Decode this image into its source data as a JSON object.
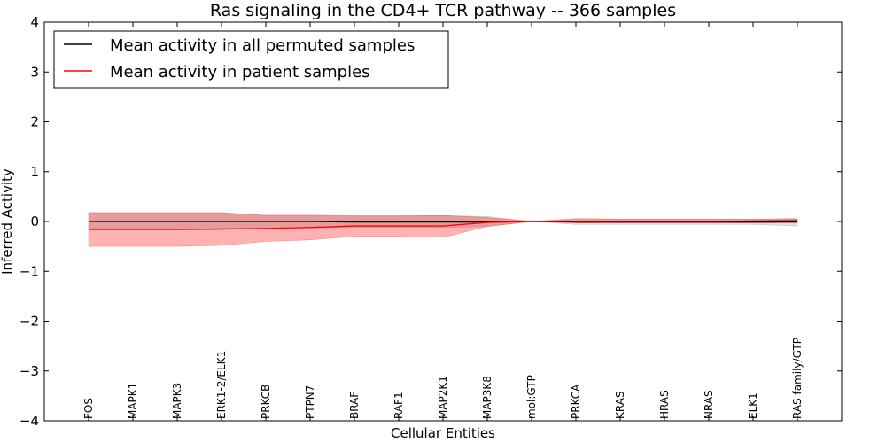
{
  "chart_data": {
    "type": "line",
    "title": "Ras signaling in the CD4+ TCR pathway -- 366 samples",
    "xlabel": "Cellular Entities",
    "ylabel": "Inferred Activity",
    "ylim": [
      -4,
      4
    ],
    "yticks": [
      -4,
      -3,
      -2,
      -1,
      0,
      1,
      2,
      3,
      4
    ],
    "categories": [
      "FOS",
      "MAPK1",
      "MAPK3",
      "ERK1-2/ELK1",
      "PRKCB",
      "PTPN7",
      "BRAF",
      "RAF1",
      "MAP2K1",
      "MAP3K8",
      "mol:GTP",
      "PRKCA",
      "KRAS",
      "HRAS",
      "NRAS",
      "ELK1",
      "RAS family/GTP"
    ],
    "legend_position": "upper-left",
    "series": [
      {
        "name": "Mean activity in all permuted samples",
        "color": "#000000",
        "band_color": "#808080",
        "values": [
          0.0,
          0.0,
          0.0,
          0.0,
          0.0,
          0.0,
          -0.01,
          -0.01,
          -0.01,
          -0.01,
          0.0,
          -0.01,
          -0.01,
          -0.01,
          -0.01,
          -0.01,
          -0.01
        ],
        "upper": [
          0.17,
          0.17,
          0.17,
          0.17,
          0.13,
          0.13,
          0.12,
          0.12,
          0.12,
          0.1,
          0.0,
          0.04,
          0.04,
          0.04,
          0.04,
          0.04,
          0.07
        ],
        "lower": [
          -0.17,
          -0.17,
          -0.17,
          -0.17,
          -0.13,
          -0.13,
          -0.12,
          -0.12,
          -0.12,
          -0.1,
          0.0,
          -0.06,
          -0.06,
          -0.06,
          -0.06,
          -0.06,
          -0.09
        ]
      },
      {
        "name": "Mean activity in patient samples",
        "color": "#ff0000",
        "band_color": "#ff0000",
        "values": [
          -0.16,
          -0.16,
          -0.16,
          -0.15,
          -0.14,
          -0.12,
          -0.09,
          -0.09,
          -0.09,
          -0.02,
          0.0,
          0.0,
          0.0,
          0.0,
          0.0,
          0.01,
          0.02
        ],
        "upper": [
          0.18,
          0.18,
          0.18,
          0.18,
          0.12,
          0.12,
          0.11,
          0.11,
          0.12,
          0.08,
          0.0,
          0.06,
          0.05,
          0.05,
          0.05,
          0.05,
          0.05
        ],
        "lower": [
          -0.5,
          -0.5,
          -0.5,
          -0.48,
          -0.4,
          -0.37,
          -0.3,
          -0.3,
          -0.32,
          -0.1,
          0.0,
          -0.03,
          -0.03,
          -0.03,
          -0.03,
          -0.03,
          -0.02
        ]
      }
    ]
  }
}
